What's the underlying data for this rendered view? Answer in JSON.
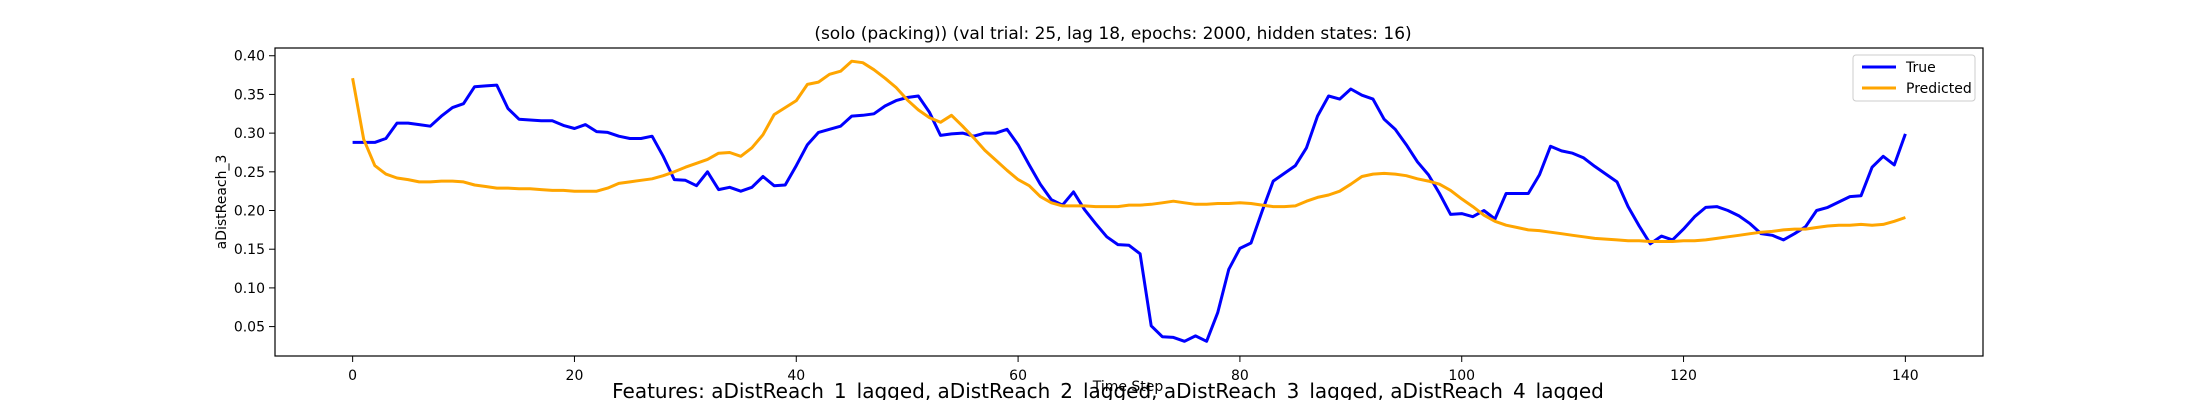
{
  "chart_data": {
    "type": "line",
    "title": "(solo (packing)) (val trial: 25, lag 18, epochs: 2000, hidden states: 16)",
    "xlabel": "Time Step",
    "ylabel": "aDistReach_3",
    "footer": "Features: aDistReach_1_lagged, aDistReach_2_lagged, aDistReach_3_lagged, aDistReach_4_lagged",
    "xlim": [
      -7,
      147
    ],
    "ylim": [
      0.012,
      0.41
    ],
    "xticks": [
      0,
      20,
      40,
      60,
      80,
      100,
      120,
      140
    ],
    "yticks": [
      0.05,
      0.1,
      0.15,
      0.2,
      0.25,
      0.3,
      0.35,
      0.4
    ],
    "legend_position": "top-right",
    "grid": false,
    "x": [
      0,
      1,
      2,
      3,
      4,
      5,
      6,
      7,
      8,
      9,
      10,
      11,
      12,
      13,
      14,
      15,
      16,
      17,
      18,
      19,
      20,
      21,
      22,
      23,
      24,
      25,
      26,
      27,
      28,
      29,
      30,
      31,
      32,
      33,
      34,
      35,
      36,
      37,
      38,
      39,
      40,
      41,
      42,
      43,
      44,
      45,
      46,
      47,
      48,
      49,
      50,
      51,
      52,
      53,
      54,
      55,
      56,
      57,
      58,
      59,
      60,
      61,
      62,
      63,
      64,
      65,
      66,
      67,
      68,
      69,
      70,
      71,
      72,
      73,
      74,
      75,
      76,
      77,
      78,
      79,
      80,
      81,
      82,
      83,
      84,
      85,
      86,
      87,
      88,
      89,
      90,
      91,
      92,
      93,
      94,
      95,
      96,
      97,
      98,
      99,
      100,
      101,
      102,
      103,
      104,
      105,
      106,
      107,
      108,
      109,
      110,
      111,
      112,
      113,
      114,
      115,
      116,
      117,
      118,
      119,
      120,
      121,
      122,
      123,
      124,
      125,
      126,
      127,
      128,
      129,
      130,
      131,
      132,
      133,
      134,
      135,
      136,
      137,
      138,
      139,
      140
    ],
    "series": [
      {
        "name": "True",
        "color": "#0000ff",
        "values": [
          0.288,
          0.288,
          0.288,
          0.293,
          0.313,
          0.313,
          0.311,
          0.309,
          0.322,
          0.333,
          0.338,
          0.36,
          0.361,
          0.362,
          0.332,
          0.318,
          0.317,
          0.316,
          0.316,
          0.31,
          0.306,
          0.311,
          0.302,
          0.301,
          0.296,
          0.293,
          0.293,
          0.296,
          0.27,
          0.24,
          0.239,
          0.232,
          0.25,
          0.227,
          0.23,
          0.225,
          0.23,
          0.244,
          0.232,
          0.233,
          0.258,
          0.285,
          0.301,
          0.305,
          0.309,
          0.322,
          0.323,
          0.325,
          0.335,
          0.342,
          0.346,
          0.348,
          0.327,
          0.297,
          0.299,
          0.3,
          0.296,
          0.3,
          0.3,
          0.305,
          0.285,
          0.259,
          0.234,
          0.214,
          0.207,
          0.224,
          0.201,
          0.183,
          0.166,
          0.156,
          0.155,
          0.144,
          0.051,
          0.037,
          0.036,
          0.031,
          0.038,
          0.031,
          0.068,
          0.124,
          0.151,
          0.158,
          0.199,
          0.238,
          0.248,
          0.258,
          0.281,
          0.322,
          0.348,
          0.344,
          0.357,
          0.349,
          0.344,
          0.318,
          0.305,
          0.285,
          0.263,
          0.246,
          0.222,
          0.195,
          0.196,
          0.192,
          0.2,
          0.189,
          0.222,
          0.222,
          0.222,
          0.246,
          0.283,
          0.277,
          0.274,
          0.268,
          0.257,
          0.247,
          0.237,
          0.205,
          0.18,
          0.157,
          0.167,
          0.162,
          0.176,
          0.192,
          0.204,
          0.205,
          0.2,
          0.193,
          0.183,
          0.17,
          0.168,
          0.162,
          0.17,
          0.179,
          0.2,
          0.204,
          0.211,
          0.218,
          0.219,
          0.256,
          0.27,
          0.259,
          0.299
        ]
      },
      {
        "name": "Predicted",
        "color": "#ffa500",
        "values": [
          0.371,
          0.292,
          0.258,
          0.247,
          0.242,
          0.24,
          0.237,
          0.237,
          0.238,
          0.238,
          0.237,
          0.233,
          0.231,
          0.229,
          0.229,
          0.228,
          0.228,
          0.227,
          0.226,
          0.226,
          0.225,
          0.225,
          0.225,
          0.229,
          0.235,
          0.237,
          0.239,
          0.241,
          0.245,
          0.25,
          0.256,
          0.261,
          0.266,
          0.274,
          0.275,
          0.27,
          0.281,
          0.298,
          0.324,
          0.333,
          0.342,
          0.363,
          0.366,
          0.376,
          0.38,
          0.393,
          0.391,
          0.382,
          0.371,
          0.359,
          0.343,
          0.33,
          0.32,
          0.314,
          0.323,
          0.309,
          0.294,
          0.278,
          0.265,
          0.252,
          0.24,
          0.232,
          0.218,
          0.21,
          0.206,
          0.206,
          0.206,
          0.205,
          0.205,
          0.205,
          0.207,
          0.207,
          0.208,
          0.21,
          0.212,
          0.21,
          0.208,
          0.208,
          0.209,
          0.209,
          0.21,
          0.209,
          0.207,
          0.205,
          0.205,
          0.206,
          0.212,
          0.217,
          0.22,
          0.225,
          0.234,
          0.244,
          0.247,
          0.248,
          0.247,
          0.245,
          0.241,
          0.238,
          0.234,
          0.226,
          0.215,
          0.205,
          0.194,
          0.186,
          0.181,
          0.178,
          0.175,
          0.174,
          0.172,
          0.17,
          0.168,
          0.166,
          0.164,
          0.163,
          0.162,
          0.161,
          0.161,
          0.16,
          0.16,
          0.16,
          0.161,
          0.161,
          0.162,
          0.164,
          0.166,
          0.168,
          0.17,
          0.172,
          0.173,
          0.175,
          0.176,
          0.176,
          0.178,
          0.18,
          0.181,
          0.181,
          0.182,
          0.181,
          0.182,
          0.186,
          0.191
        ]
      }
    ]
  }
}
